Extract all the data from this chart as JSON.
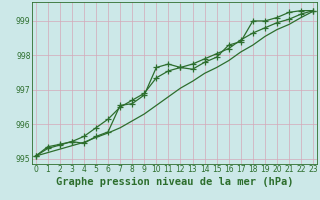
{
  "xlabel": "Graphe pression niveau de la mer (hPa)",
  "background_color": "#cce8e8",
  "grid_color": "#d4a8b8",
  "line_color": "#2d6e2d",
  "x": [
    0,
    1,
    2,
    3,
    4,
    5,
    6,
    7,
    8,
    9,
    10,
    11,
    12,
    13,
    14,
    15,
    16,
    17,
    18,
    19,
    20,
    21,
    22,
    23
  ],
  "line1": [
    995.08,
    995.35,
    995.42,
    995.5,
    995.45,
    995.65,
    995.78,
    996.55,
    996.6,
    996.85,
    997.65,
    997.75,
    997.65,
    997.6,
    997.8,
    997.95,
    998.3,
    998.4,
    999.0,
    999.0,
    999.1,
    999.25,
    999.3,
    999.3
  ],
  "line2": [
    995.08,
    995.3,
    995.4,
    995.5,
    995.65,
    995.9,
    996.15,
    996.5,
    996.7,
    996.9,
    997.35,
    997.55,
    997.65,
    997.75,
    997.9,
    998.05,
    998.2,
    998.45,
    998.65,
    998.8,
    998.95,
    999.05,
    999.2,
    999.3
  ],
  "line3": [
    995.08,
    995.18,
    995.28,
    995.38,
    995.48,
    995.62,
    995.75,
    995.9,
    996.1,
    996.3,
    996.55,
    996.8,
    997.05,
    997.25,
    997.48,
    997.65,
    997.85,
    998.1,
    998.3,
    998.55,
    998.75,
    998.9,
    999.1,
    999.28
  ],
  "ylim": [
    994.85,
    999.55
  ],
  "yticks": [
    995,
    996,
    997,
    998,
    999
  ],
  "xticks": [
    0,
    1,
    2,
    3,
    4,
    5,
    6,
    7,
    8,
    9,
    10,
    11,
    12,
    13,
    14,
    15,
    16,
    17,
    18,
    19,
    20,
    21,
    22,
    23
  ],
  "tick_fontsize": 5.5,
  "xlabel_fontsize": 7.5,
  "tick_color": "#2d6e2d",
  "xlabel_color": "#2d6e2d"
}
